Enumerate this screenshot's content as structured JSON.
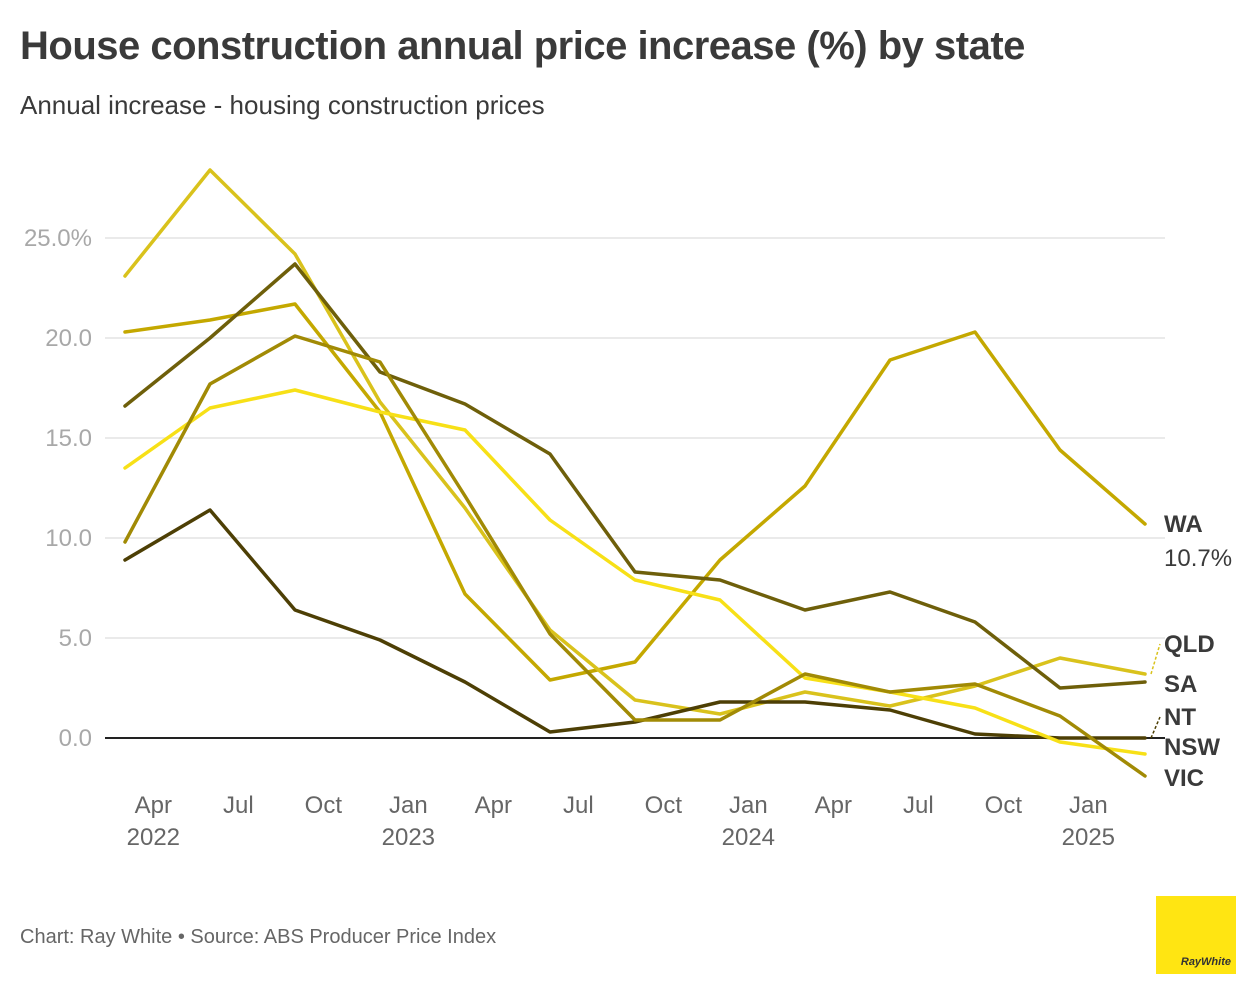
{
  "title": "House construction annual price increase (%) by state",
  "subtitle": "Annual increase - housing construction prices",
  "footer": "Chart: Ray White • Source: ABS Producer Price Index",
  "logo_text": "RayWhite",
  "chart_data": {
    "type": "line",
    "x": [
      "2022-03",
      "2022-06",
      "2022-09",
      "2022-12",
      "2023-03",
      "2023-06",
      "2023-09",
      "2023-12",
      "2024-03",
      "2024-06",
      "2024-09",
      "2024-12",
      "2025-03"
    ],
    "x_ticks": [
      {
        "label": "Apr",
        "year": "2022",
        "date": "2022-04"
      },
      {
        "label": "Jul",
        "year": "",
        "date": "2022-07"
      },
      {
        "label": "Oct",
        "year": "",
        "date": "2022-10"
      },
      {
        "label": "Jan",
        "year": "2023",
        "date": "2023-01"
      },
      {
        "label": "Apr",
        "year": "",
        "date": "2023-04"
      },
      {
        "label": "Jul",
        "year": "",
        "date": "2023-07"
      },
      {
        "label": "Oct",
        "year": "",
        "date": "2023-10"
      },
      {
        "label": "Jan",
        "year": "2024",
        "date": "2024-01"
      },
      {
        "label": "Apr",
        "year": "",
        "date": "2024-04"
      },
      {
        "label": "Jul",
        "year": "",
        "date": "2024-07"
      },
      {
        "label": "Oct",
        "year": "",
        "date": "2024-10"
      },
      {
        "label": "Jan",
        "year": "2025",
        "date": "2025-01"
      }
    ],
    "y_ticks": [
      {
        "value": 0,
        "label": "0.0"
      },
      {
        "value": 5,
        "label": "5.0"
      },
      {
        "value": 10,
        "label": "10.0"
      },
      {
        "value": 15,
        "label": "15.0"
      },
      {
        "value": 20,
        "label": "20.0"
      },
      {
        "value": 25,
        "label": "25.0%"
      }
    ],
    "ylim": [
      -2.5,
      28.5
    ],
    "grid": true,
    "series": [
      {
        "name": "WA",
        "end_label": "10.7%",
        "color": "#c4a800",
        "values": [
          20.3,
          20.9,
          21.7,
          16.3,
          7.2,
          2.9,
          3.8,
          8.9,
          12.6,
          18.9,
          20.3,
          14.4,
          10.7
        ]
      },
      {
        "name": "QLD",
        "color": "#d9c21c",
        "values": [
          23.1,
          28.4,
          24.2,
          16.8,
          11.5,
          5.4,
          1.9,
          1.2,
          2.3,
          1.6,
          2.6,
          4.0,
          3.2
        ]
      },
      {
        "name": "SA",
        "color": "#6e5f0a",
        "values": [
          16.6,
          20.0,
          23.7,
          18.3,
          16.7,
          14.2,
          8.3,
          7.9,
          6.4,
          7.3,
          5.8,
          2.5,
          2.8
        ]
      },
      {
        "name": "NT",
        "color": "#4d3f05",
        "values": [
          8.9,
          11.4,
          6.4,
          4.9,
          2.8,
          0.3,
          0.8,
          1.8,
          1.8,
          1.4,
          0.2,
          0.0,
          0.0
        ]
      },
      {
        "name": "NSW",
        "color": "#f7e017",
        "values": [
          13.5,
          16.5,
          17.4,
          16.3,
          15.4,
          10.9,
          7.9,
          6.9,
          3.0,
          2.3,
          1.5,
          -0.2,
          -0.8
        ]
      },
      {
        "name": "VIC",
        "color": "#a18a05",
        "values": [
          9.8,
          17.7,
          20.1,
          18.8,
          12.1,
          5.2,
          0.9,
          0.9,
          3.2,
          2.3,
          2.7,
          1.1,
          -1.9
        ]
      }
    ]
  }
}
